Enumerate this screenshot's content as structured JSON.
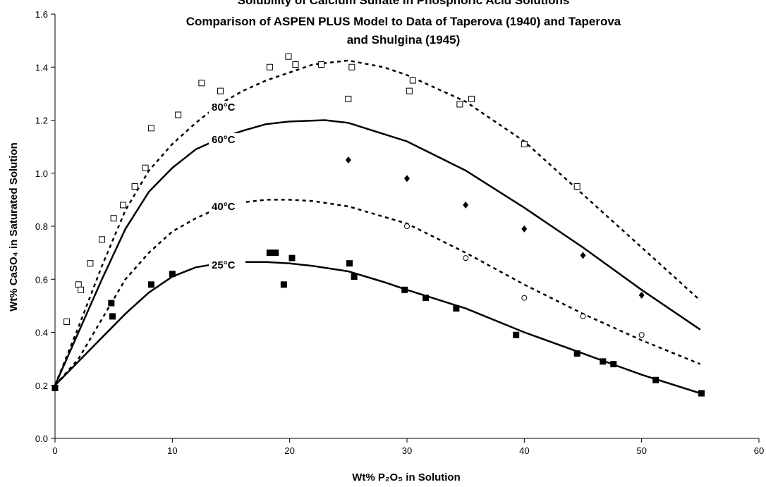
{
  "chart_data": {
    "type": "scatter",
    "title": [
      "Solubility of Calcium Sulfate in Phosphoric Acid Solutions",
      "Comparison of ASPEN PLUS Model to Data of Taperova (1940) and Taperova",
      "and Shulgina (1945)"
    ],
    "x_label": "Wt% P₂O₅ in Solution",
    "y_label": "Wt% CaSO₄ in Saturated Solution",
    "xlim": [
      0,
      60
    ],
    "xticks": [
      0,
      10,
      20,
      30,
      40,
      50,
      60
    ],
    "ylim": [
      0,
      1.6
    ],
    "yticks": [
      {
        "value": 0,
        "label": "0.0"
      },
      0.2,
      0.4,
      0.6,
      0.8,
      {
        "value": 1,
        "label": "1.0"
      },
      1.2,
      1.4,
      1.6
    ],
    "grid": false,
    "series": [
      {
        "name": "80°C",
        "mode": "line",
        "dash": true,
        "color": "#000000",
        "x": [
          0,
          2,
          4,
          6,
          8,
          10,
          12,
          14,
          16,
          18,
          20,
          22,
          25,
          28,
          30,
          35,
          40,
          45,
          50,
          55
        ],
        "values": [
          0.2,
          0.42,
          0.65,
          0.86,
          1.01,
          1.11,
          1.19,
          1.26,
          1.31,
          1.35,
          1.38,
          1.41,
          1.425,
          1.4,
          1.37,
          1.27,
          1.12,
          0.92,
          0.72,
          0.52
        ]
      },
      {
        "name": "60°C",
        "mode": "line",
        "dash": false,
        "color": "#000000",
        "x": [
          0,
          2,
          4,
          6,
          8,
          10,
          12,
          14,
          16,
          18,
          20,
          23,
          25,
          30,
          35,
          40,
          45,
          50,
          55
        ],
        "values": [
          0.2,
          0.4,
          0.6,
          0.79,
          0.93,
          1.02,
          1.09,
          1.13,
          1.16,
          1.185,
          1.195,
          1.2,
          1.19,
          1.12,
          1.01,
          0.87,
          0.72,
          0.56,
          0.41
        ]
      },
      {
        "name": "40°C",
        "mode": "line",
        "dash": true,
        "color": "#000000",
        "x": [
          0,
          2,
          4,
          6,
          8,
          10,
          12,
          14,
          16,
          18,
          20,
          22,
          25,
          30,
          35,
          40,
          45,
          50,
          55
        ],
        "values": [
          0.2,
          0.3,
          0.45,
          0.6,
          0.7,
          0.78,
          0.83,
          0.87,
          0.89,
          0.9,
          0.9,
          0.895,
          0.875,
          0.81,
          0.7,
          0.58,
          0.47,
          0.37,
          0.28
        ]
      },
      {
        "name": "25°C",
        "mode": "line",
        "dash": false,
        "color": "#000000",
        "x": [
          0,
          2,
          4,
          6,
          8,
          10,
          12,
          14,
          16,
          18,
          20,
          22,
          25,
          28,
          30,
          35,
          40,
          45,
          50,
          55
        ],
        "values": [
          0.2,
          0.29,
          0.38,
          0.47,
          0.55,
          0.61,
          0.645,
          0.66,
          0.665,
          0.665,
          0.66,
          0.65,
          0.63,
          0.59,
          0.56,
          0.49,
          0.4,
          0.32,
          0.24,
          0.17
        ]
      },
      {
        "mode": "markers",
        "marker": "square-open",
        "color": "#000000",
        "x": [
          0,
          1,
          2,
          2.2,
          3,
          4,
          5,
          5.8,
          6.8,
          7.7,
          8.2,
          10.5,
          12.5,
          14.1,
          18.3,
          19.9,
          20.5,
          22.7,
          25,
          25.3,
          30.2,
          30.5,
          34.5,
          35.5,
          40,
          44.5
        ],
        "values": [
          0.19,
          0.44,
          0.58,
          0.56,
          0.66,
          0.75,
          0.83,
          0.88,
          0.95,
          1.02,
          1.17,
          1.22,
          1.34,
          1.31,
          1.4,
          1.44,
          1.41,
          1.41,
          1.28,
          1.4,
          1.31,
          1.35,
          1.26,
          1.28,
          1.11,
          0.95
        ]
      },
      {
        "mode": "markers",
        "marker": "diamond",
        "color": "#000000",
        "x": [
          25,
          30,
          35,
          40,
          45,
          50
        ],
        "values": [
          1.05,
          0.98,
          0.88,
          0.79,
          0.69,
          0.54
        ]
      },
      {
        "mode": "markers",
        "marker": "circle-open",
        "color": "#000000",
        "x": [
          30,
          35,
          40,
          45,
          50
        ],
        "values": [
          0.8,
          0.68,
          0.53,
          0.46,
          0.39
        ]
      },
      {
        "mode": "markers",
        "marker": "square",
        "color": "#000000",
        "x": [
          0,
          4.8,
          4.9,
          8.2,
          10,
          18.3,
          18.8,
          19.5,
          20.2,
          25.1,
          25.5,
          29.8,
          31.6,
          34.2,
          39.3,
          44.5,
          46.7,
          47.6,
          51.2,
          55.1
        ],
        "values": [
          0.19,
          0.51,
          0.46,
          0.58,
          0.62,
          0.7,
          0.7,
          0.58,
          0.68,
          0.66,
          0.61,
          0.56,
          0.53,
          0.49,
          0.39,
          0.32,
          0.29,
          0.28,
          0.22,
          0.17
        ]
      }
    ]
  }
}
